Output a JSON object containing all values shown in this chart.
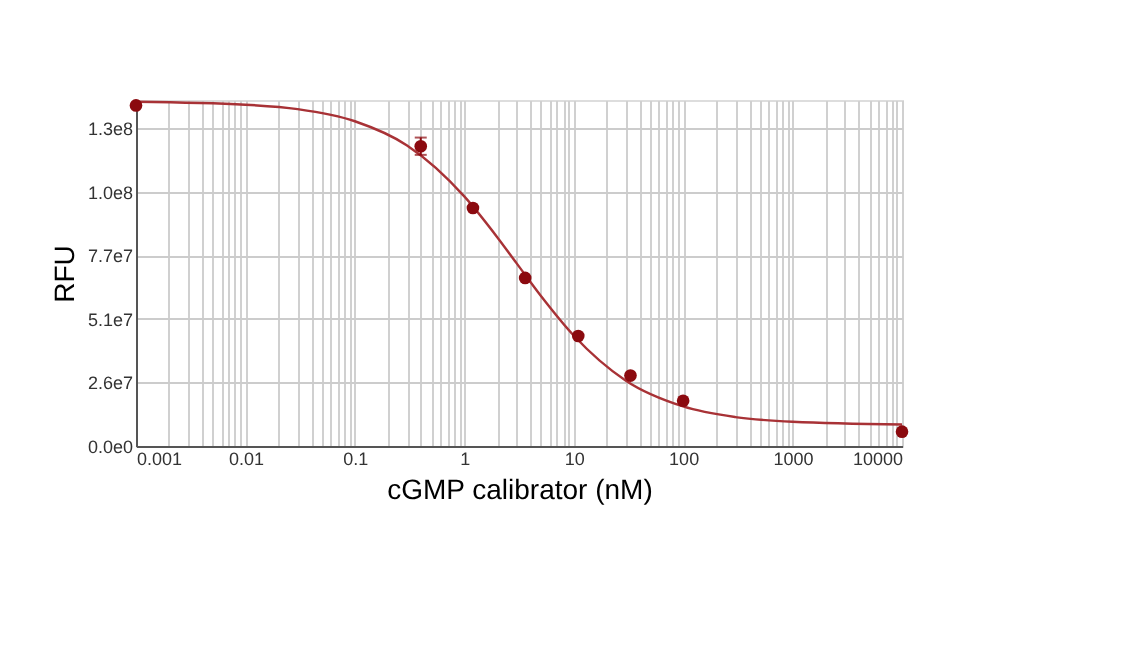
{
  "chart_data": {
    "type": "line",
    "xlabel": "cGMP calibrator (nM)",
    "ylabel": "RFU",
    "log": "x",
    "grid": true,
    "marker": "circle",
    "xlim": [
      0.001,
      10000
    ],
    "ylim": [
      0,
      140000000
    ],
    "xticks": [
      0.001,
      0.01,
      0.1,
      1,
      10,
      100,
      1000,
      10000,
      {
        "value": 0.002,
        "label": null
      },
      {
        "value": 0.003,
        "label": null
      },
      {
        "value": 0.004,
        "label": null
      },
      {
        "value": 0.005,
        "label": null
      },
      {
        "value": 0.006,
        "label": null
      },
      {
        "value": 0.007,
        "label": null
      },
      {
        "value": 0.008,
        "label": null
      },
      {
        "value": 0.009,
        "label": null
      },
      {
        "value": 0.02,
        "label": null
      },
      {
        "value": 0.03,
        "label": null
      },
      {
        "value": 0.04,
        "label": null
      },
      {
        "value": 0.05,
        "label": null
      },
      {
        "value": 0.06,
        "label": null
      },
      {
        "value": 0.07,
        "label": null
      },
      {
        "value": 0.08,
        "label": null
      },
      {
        "value": 0.09,
        "label": null
      },
      {
        "value": 0.2,
        "label": null
      },
      {
        "value": 0.3,
        "label": null
      },
      {
        "value": 0.4,
        "label": null
      },
      {
        "value": 0.5,
        "label": null
      },
      {
        "value": 0.6,
        "label": null
      },
      {
        "value": 0.7,
        "label": null
      },
      {
        "value": 0.8,
        "label": null
      },
      {
        "value": 0.9,
        "label": null
      },
      {
        "value": 2,
        "label": null
      },
      {
        "value": 3,
        "label": null
      },
      {
        "value": 4,
        "label": null
      },
      {
        "value": 5,
        "label": null
      },
      {
        "value": 6,
        "label": null
      },
      {
        "value": 7,
        "label": null
      },
      {
        "value": 8,
        "label": null
      },
      {
        "value": 9,
        "label": null
      },
      {
        "value": 20,
        "label": null
      },
      {
        "value": 30,
        "label": null
      },
      {
        "value": 40,
        "label": null
      },
      {
        "value": 50,
        "label": null
      },
      {
        "value": 60,
        "label": null
      },
      {
        "value": 70,
        "label": null
      },
      {
        "value": 80,
        "label": null
      },
      {
        "value": 90,
        "label": null
      },
      {
        "value": 200,
        "label": null
      },
      {
        "value": 300,
        "label": null
      },
      {
        "value": 400,
        "label": null
      },
      {
        "value": 500,
        "label": null
      },
      {
        "value": 600,
        "label": null
      },
      {
        "value": 700,
        "label": null
      },
      {
        "value": 800,
        "label": null
      },
      {
        "value": 900,
        "label": null
      },
      {
        "value": 2000,
        "label": null
      },
      {
        "value": 3000,
        "label": null
      },
      {
        "value": 4000,
        "label": null
      },
      {
        "value": 5000,
        "label": null
      },
      {
        "value": 6000,
        "label": null
      },
      {
        "value": 7000,
        "label": null
      },
      {
        "value": 8000,
        "label": null
      },
      {
        "value": 9000,
        "label": null
      }
    ],
    "yticks": [
      {
        "value": 0,
        "label": "0.0e0"
      },
      {
        "value": 25700000,
        "label": "2.6e7"
      },
      {
        "value": 51400000,
        "label": "5.1e7"
      },
      {
        "value": 77100000,
        "label": "7.7e7"
      },
      {
        "value": 102800000,
        "label": "1.0e8"
      },
      {
        "value": 128500000,
        "label": "1.3e8"
      }
    ],
    "series": [
      {
        "marker": "none",
        "color": "#a83236",
        "x": [
          0.001,
          0.01,
          0.03,
          0.1,
          0.3,
          1,
          2,
          3,
          5,
          10,
          30,
          100,
          300,
          1000,
          10000
        ],
        "values": [
          139300000,
          138100000,
          136300000,
          131400000,
          121600000,
          101000000,
          84500000,
          74000000,
          60800000,
          44700000,
          26400000,
          16000000,
          11700000,
          9800000,
          8700000
        ]
      },
      {
        "type": "scatter",
        "color": "#8b0a0f",
        "x": [
          0.001,
          0.4,
          1.2,
          3.6,
          11,
          33,
          100,
          10000
        ],
        "values": [
          137800000,
          121300000,
          96300000,
          68000000,
          44500000,
          28500000,
          18300000,
          5800000
        ],
        "errors": [
          null,
          3500000,
          null,
          null,
          null,
          null,
          null,
          null
        ]
      }
    ]
  }
}
